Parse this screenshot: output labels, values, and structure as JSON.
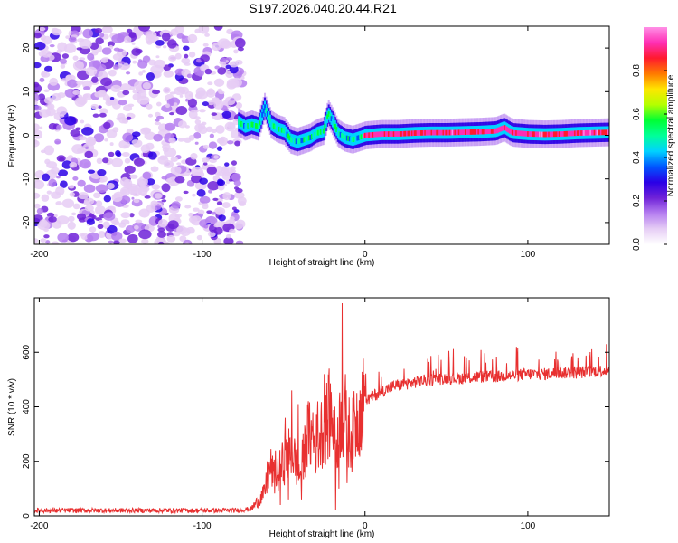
{
  "title": "S197.2026.040.20.44.R21",
  "colors": {
    "snr_line": "#e83030",
    "frame": "#000000"
  },
  "chart_data": [
    {
      "type": "heatmap",
      "name": "spectrogram",
      "xlabel": "Height of straight line (km)",
      "ylabel": "Frequency (Hz)",
      "xlim": [
        -203,
        150
      ],
      "ylim": [
        -25,
        25
      ],
      "xticks": [
        -200,
        -100,
        0,
        100
      ],
      "yticks": [
        20,
        10,
        0,
        -10,
        -20
      ],
      "xtick_labels": [
        "-200",
        "-100",
        "0",
        "100"
      ],
      "ytick_labels": [
        "20",
        "10",
        "0",
        "-10",
        "-20"
      ],
      "noise_region_x": [
        -203,
        -75
      ],
      "colorbar": {
        "label": "Normalized spectral amplitude",
        "range": [
          0,
          1
        ],
        "ticks": [
          0.0,
          0.2,
          0.4,
          0.6,
          0.8
        ],
        "tick_labels": [
          "0.0",
          "0.2",
          "0.4",
          "0.6",
          "0.8"
        ],
        "colors": [
          "#ffffff",
          "#e6cdf5",
          "#b57ef0",
          "#6f22d8",
          "#2a00e6",
          "#0055ff",
          "#00d2ff",
          "#00ff9a",
          "#00ff33",
          "#b4ff00",
          "#ffe600",
          "#ff7a00",
          "#ff1a2e",
          "#ff2fb4",
          "#ff90e6"
        ]
      },
      "trace_points": [
        [
          -78,
          3
        ],
        [
          -74,
          2
        ],
        [
          -70,
          2.5
        ],
        [
          -66,
          2
        ],
        [
          -62,
          6.5
        ],
        [
          -58,
          2.5
        ],
        [
          -54,
          1.5
        ],
        [
          -50,
          1
        ],
        [
          -46,
          -1
        ],
        [
          -42,
          -1.5
        ],
        [
          -38,
          -1
        ],
        [
          -34,
          -0.5
        ],
        [
          -30,
          0.5
        ],
        [
          -26,
          1
        ],
        [
          -23,
          5
        ],
        [
          -20,
          3
        ],
        [
          -17,
          0.5
        ],
        [
          -13,
          -0.5
        ],
        [
          -8,
          -1
        ],
        [
          -4,
          -0.5
        ],
        [
          0,
          0
        ],
        [
          10,
          0.3
        ],
        [
          20,
          0.3
        ],
        [
          30,
          0.5
        ],
        [
          40,
          0.6
        ],
        [
          50,
          0.6
        ],
        [
          60,
          0.7
        ],
        [
          70,
          0.8
        ],
        [
          80,
          1
        ],
        [
          85,
          1.8
        ],
        [
          90,
          0.6
        ],
        [
          100,
          0.3
        ],
        [
          110,
          0.2
        ],
        [
          120,
          0.3
        ],
        [
          130,
          0.5
        ],
        [
          140,
          0.6
        ],
        [
          150,
          0.7
        ]
      ]
    },
    {
      "type": "line",
      "name": "snr",
      "xlabel": "Height of straight line (km)",
      "ylabel": "SNR (10 * v/v)",
      "xlim": [
        -203,
        150
      ],
      "ylim": [
        0,
        800
      ],
      "xticks": [
        -200,
        -100,
        0,
        100
      ],
      "yticks": [
        0,
        200,
        400,
        600
      ],
      "xtick_labels": [
        "-200",
        "-100",
        "0",
        "100"
      ],
      "ytick_labels": [
        "0",
        "200",
        "400",
        "600"
      ],
      "envelope": {
        "x": [
          -203,
          -150,
          -100,
          -80,
          -70,
          -62,
          -58,
          -55,
          -50,
          -45,
          -40,
          -35,
          -30,
          -25,
          -20,
          -18,
          -15,
          -12,
          -8,
          -5,
          -2,
          0,
          5,
          10,
          15,
          20,
          25,
          30,
          40,
          50,
          60,
          70,
          80,
          90,
          100,
          110,
          120,
          130,
          140,
          150
        ],
        "y": [
          20,
          20,
          20,
          20,
          25,
          80,
          180,
          130,
          200,
          240,
          150,
          300,
          260,
          330,
          380,
          250,
          360,
          330,
          290,
          360,
          400,
          420,
          440,
          455,
          470,
          480,
          485,
          490,
          500,
          505,
          505,
          510,
          510,
          515,
          520,
          520,
          525,
          525,
          530,
          535
        ]
      },
      "spikes": [
        [
          -60,
          200
        ],
        [
          -55,
          240
        ],
        [
          -52,
          40
        ],
        [
          -49,
          360
        ],
        [
          -47,
          60
        ],
        [
          -45,
          460
        ],
        [
          -41,
          410
        ],
        [
          -39,
          60
        ],
        [
          -35,
          400
        ],
        [
          -32,
          380
        ],
        [
          -29,
          420
        ],
        [
          -27,
          380
        ],
        [
          -25,
          520
        ],
        [
          -22,
          540
        ],
        [
          -20,
          360
        ],
        [
          -18,
          20
        ],
        [
          -16,
          100
        ],
        [
          -14,
          780
        ],
        [
          -12,
          520
        ],
        [
          -11,
          120
        ],
        [
          -7,
          380
        ],
        [
          -3,
          460
        ]
      ]
    }
  ]
}
